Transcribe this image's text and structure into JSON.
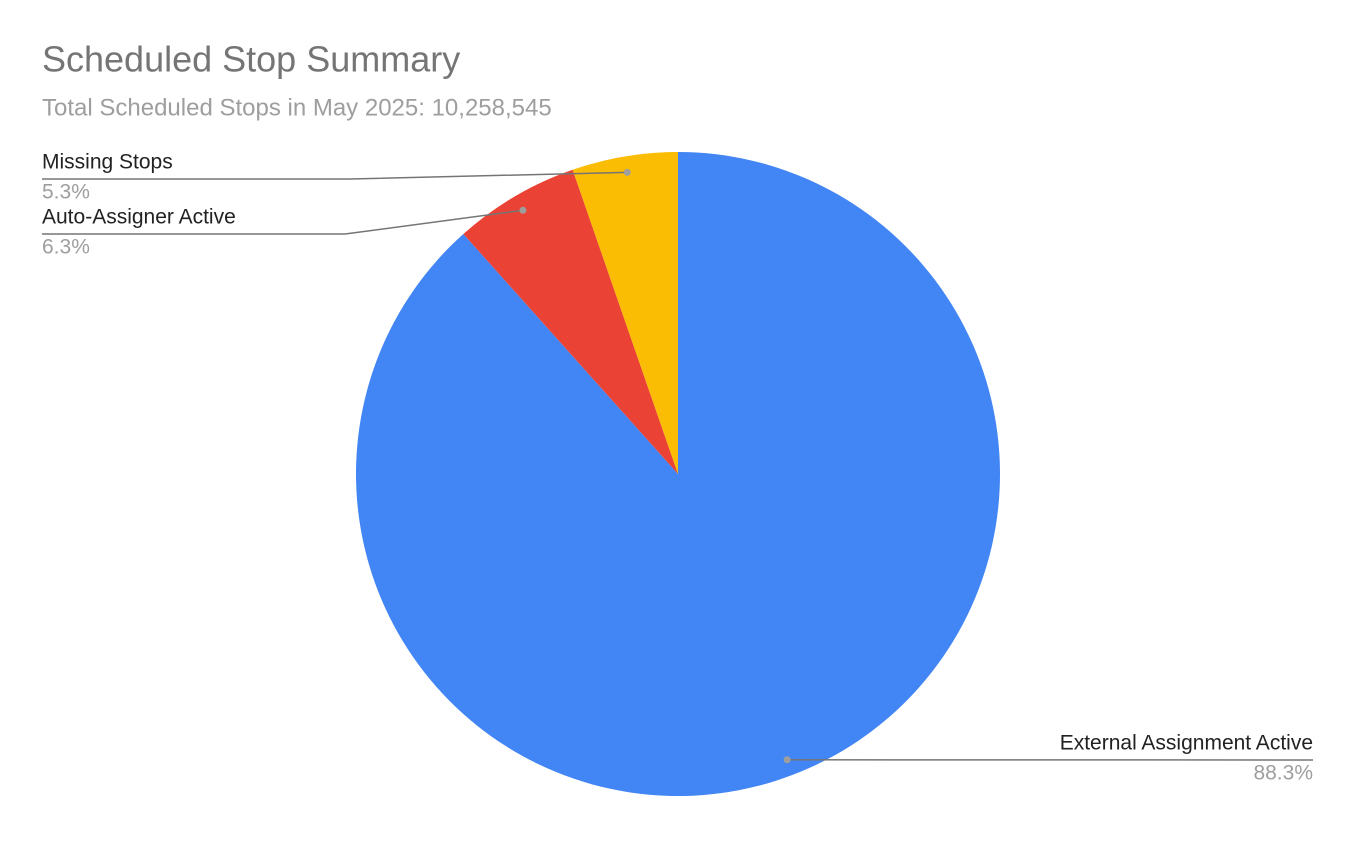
{
  "chart_data": {
    "type": "pie",
    "title": "Scheduled Stop Summary",
    "subtitle": "Total Scheduled Stops in May 2025: 10,258,545",
    "categories": [
      "External Assignment Active",
      "Auto-Assigner Active",
      "Missing Stops"
    ],
    "values": [
      88.3,
      6.3,
      5.3
    ],
    "value_labels": [
      "88.3%",
      "6.3%",
      "5.3%"
    ],
    "colors": [
      "#4285f4",
      "#ea4335",
      "#fbbc04"
    ]
  }
}
